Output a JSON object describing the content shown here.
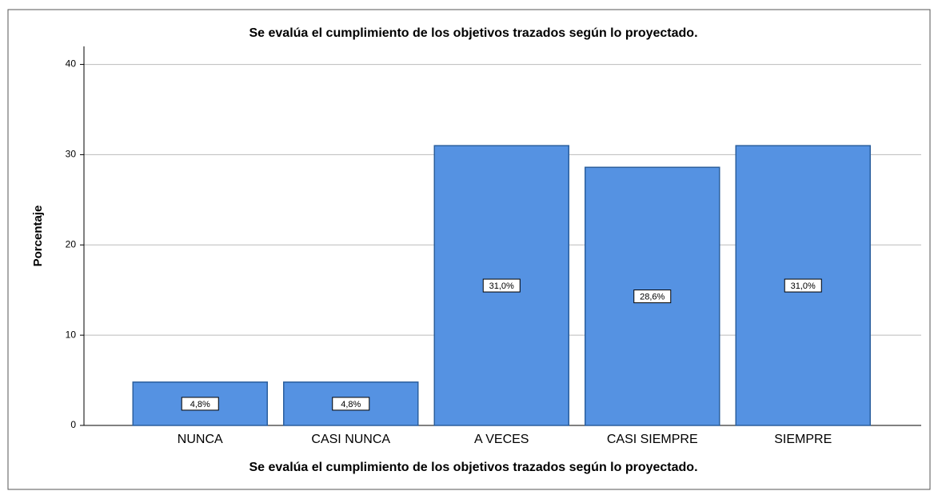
{
  "chart_data": {
    "type": "bar",
    "title": "Se evalúa el cumplimiento de los objetivos trazados según lo proyectado.",
    "xlabel": "Se evalúa el cumplimiento de los objetivos trazados según lo proyectado.",
    "ylabel": "Porcentaje",
    "categories": [
      "NUNCA",
      "CASI NUNCA",
      "A VECES",
      "CASI SIEMPRE",
      "SIEMPRE"
    ],
    "values": [
      4.8,
      4.8,
      31.0,
      28.6,
      31.0
    ],
    "value_labels": [
      "4,8%",
      "4,8%",
      "31,0%",
      "28,6%",
      "31,0%"
    ],
    "color": "#5592e2",
    "ylim": [
      0,
      42
    ],
    "yticks": [
      0,
      10,
      20,
      30,
      40
    ],
    "grid": true
  }
}
